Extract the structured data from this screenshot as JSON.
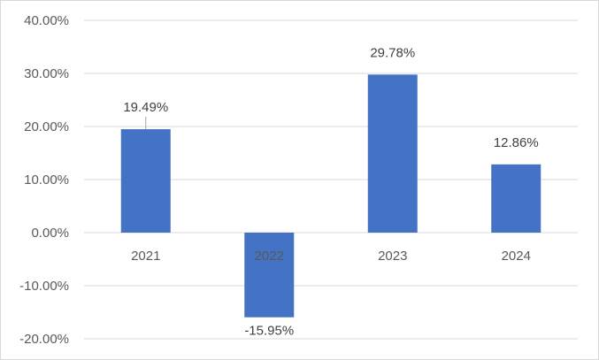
{
  "chart_data": {
    "type": "bar",
    "title": "",
    "xlabel": "",
    "ylabel": "",
    "categories": [
      "2021",
      "2022",
      "2023",
      "2024"
    ],
    "values": [
      19.49,
      -15.95,
      29.78,
      12.86
    ],
    "data_labels": [
      "19.49%",
      "-15.95%",
      "29.78%",
      "12.86%"
    ],
    "ylim": [
      -20,
      40
    ],
    "yticks": [
      40,
      30,
      20,
      10,
      0,
      -10,
      -20
    ],
    "ytick_labels": [
      "40.00%",
      "30.00%",
      "20.00%",
      "10.00%",
      "0.00%",
      "-10.00%",
      "-20.00%"
    ],
    "grid": true,
    "legend": "none",
    "bar_color": "#4472c4"
  }
}
